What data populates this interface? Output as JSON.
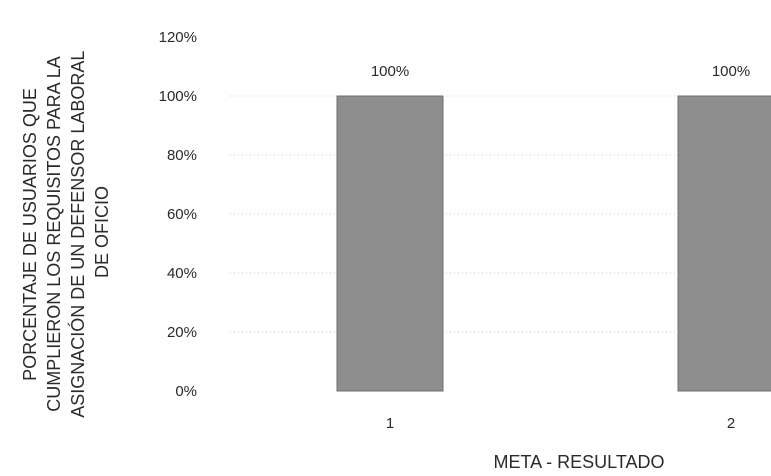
{
  "chart_data": {
    "type": "bar",
    "categories": [
      "1",
      "2"
    ],
    "values": [
      100,
      100
    ],
    "data_labels": [
      "100%",
      "100%"
    ],
    "title": "",
    "xlabel": "META - RESULTADO",
    "ylabel_lines": [
      "PORCENTAJE DE USUARIOS QUE",
      "CUMPLIERON LOS REQUISITOS PARA LA",
      "ASIGNACIÓN DE UN DEFENSOR LABORAL",
      "DE OFICIO"
    ],
    "ylim": [
      0,
      120
    ],
    "yticks": [
      0,
      20,
      40,
      60,
      80,
      100,
      120
    ],
    "ytick_labels": [
      "0%",
      "20%",
      "40%",
      "60%",
      "80%",
      "100%",
      "120%"
    ],
    "grid": true,
    "legend": "none",
    "bar_color": "#8e8e8e"
  }
}
